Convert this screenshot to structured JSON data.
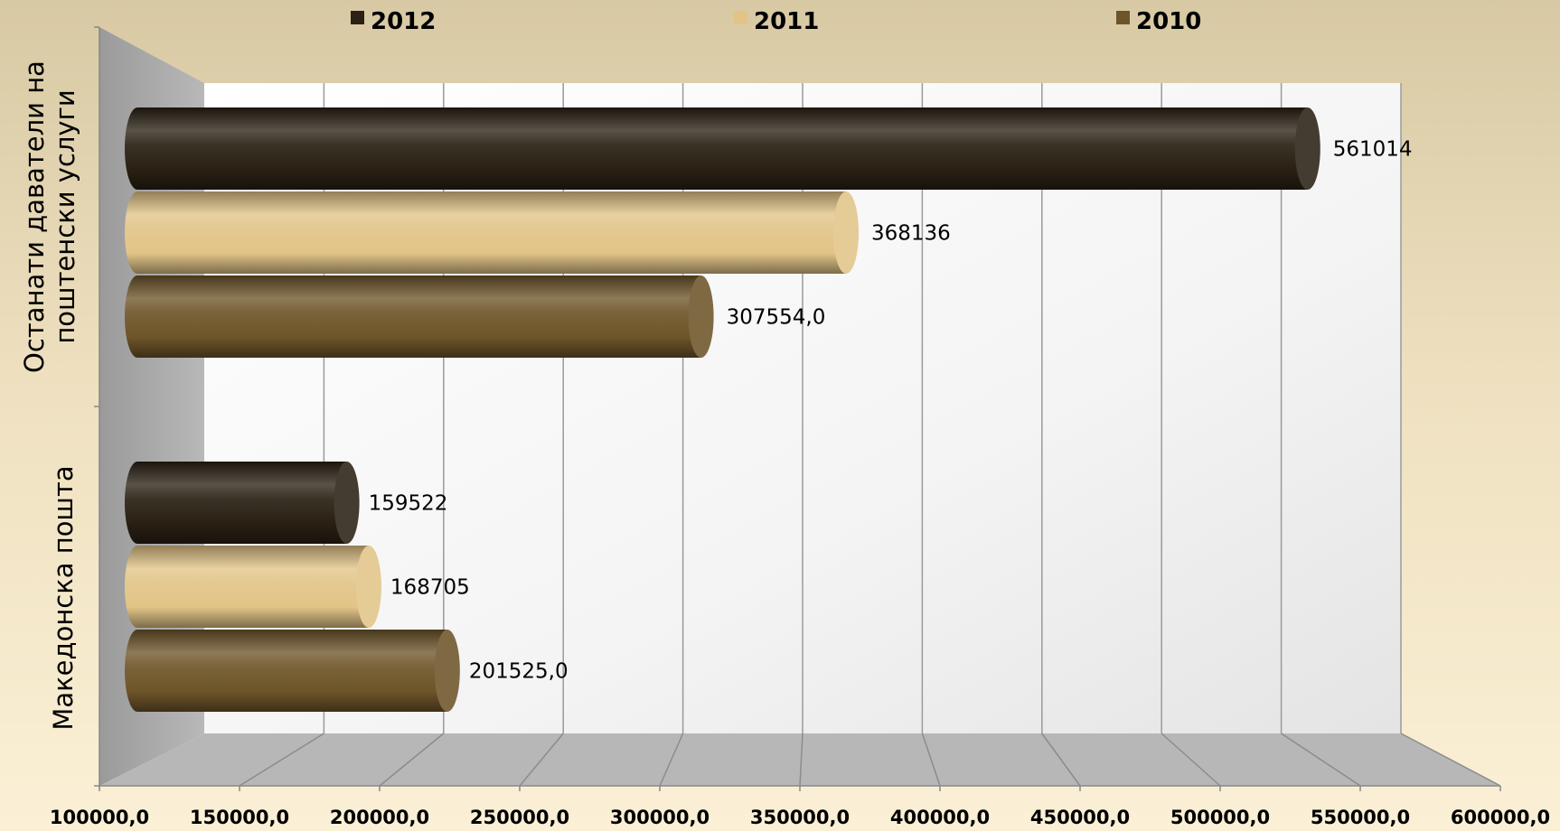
{
  "chart_data": {
    "type": "bar",
    "orientation": "horizontal",
    "style": "3d-cylinder",
    "categories": [
      "Македонска пошта",
      "Останати даватели на\nпоштенски услуги"
    ],
    "series": [
      {
        "name": "2012",
        "color": "#2a2114",
        "values": [
          159522,
          561014
        ],
        "labels": [
          "159522",
          "561014"
        ]
      },
      {
        "name": "2011",
        "color": "#e2c487",
        "values": [
          168705,
          368136
        ],
        "labels": [
          "168705",
          "368136"
        ]
      },
      {
        "name": "2010",
        "color": "#6e5529",
        "values": [
          201525.0,
          307554.0
        ],
        "labels": [
          "201525,0",
          "307554,0"
        ]
      }
    ],
    "xlim": [
      100000,
      600000
    ],
    "xticks": [
      "100000,0",
      "150000,0",
      "200000,0",
      "250000,0",
      "300000,0",
      "350000,0",
      "400000,0",
      "450000,0",
      "500000,0",
      "550000,0",
      "600000,0"
    ],
    "grid": true,
    "legend_position": "top"
  }
}
